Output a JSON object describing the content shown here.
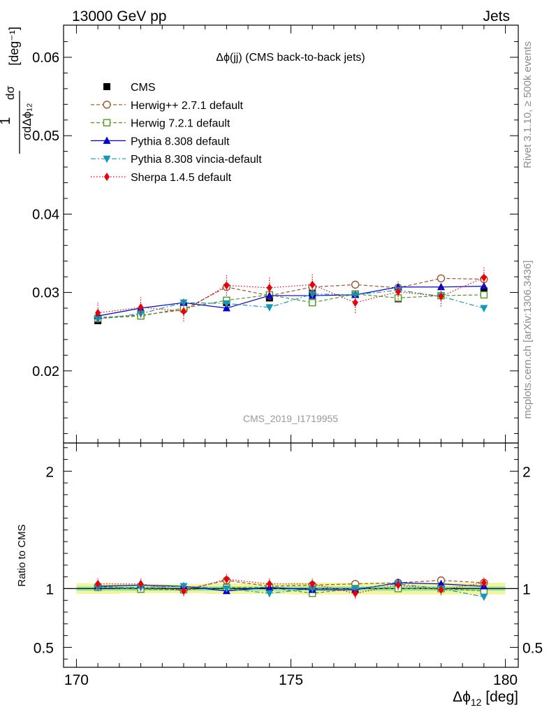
{
  "header": {
    "left": "13000 GeV pp",
    "right": "Jets"
  },
  "side_labels": {
    "rivet": "Rivet 3.1.10, ≥ 500k events",
    "mcplots": "mcplots.cern.ch [arXiv:1306.3436]"
  },
  "watermark": "CMS_2019_I1719955",
  "colors": {
    "CMS": "#000000",
    "Herwig++ 2.7.1 default": "#a0522d",
    "Herwig 7.2.1 default": "#4d9a1f",
    "Pythia 8.308 default": "#0000cc",
    "Pythia 8.308 vincia-default": "#1797b8",
    "Sherpa 1.4.5 default": "#e8000b",
    "band_inner": "#8ee6a8",
    "band_outer": "#f4f59a"
  },
  "chart_data": [
    {
      "type": "line",
      "title": "Δϕ(jj) (CMS back-to-back jets)",
      "ylabel": "1/σ dσ/dΔϕ_12 [deg⁻¹]",
      "xlim": [
        169.7,
        180.3
      ],
      "ylim": [
        0.0108,
        0.0641
      ],
      "yticks": [
        "0.02",
        "0.03",
        "0.04",
        "0.05",
        "0.06"
      ],
      "legend_position": "top-left",
      "x": [
        170.5,
        171.5,
        172.5,
        173.5,
        174.5,
        175.5,
        176.5,
        177.5,
        178.5,
        179.5
      ],
      "series": [
        {
          "name": "CMS",
          "marker": "square-filled",
          "line": "none",
          "values": [
            0.0264,
            0.0271,
            0.0283,
            0.0287,
            0.0293,
            0.0299,
            0.0298,
            0.0292,
            0.0296,
            0.0302
          ]
        },
        {
          "name": "Herwig++ 2.7.1 default",
          "marker": "circle-open",
          "line": "dashed",
          "values": [
            0.0268,
            0.0271,
            0.0278,
            0.0307,
            0.0296,
            0.0307,
            0.031,
            0.0306,
            0.0318,
            0.0317
          ]
        },
        {
          "name": "Herwig 7.2.1 default",
          "marker": "square-open",
          "line": "dashed",
          "values": [
            0.0267,
            0.027,
            0.028,
            0.029,
            0.0297,
            0.0287,
            0.0298,
            0.0293,
            0.0296,
            0.0297
          ]
        },
        {
          "name": "Pythia 8.308 default",
          "marker": "triangle-up",
          "line": "solid",
          "values": [
            0.027,
            0.028,
            0.0287,
            0.028,
            0.0296,
            0.0296,
            0.0297,
            0.0307,
            0.0307,
            0.0308
          ]
        },
        {
          "name": "Pythia 8.308 vincia-default",
          "marker": "triangle-down",
          "line": "dashdot",
          "values": [
            0.0266,
            0.0273,
            0.0287,
            0.0286,
            0.0281,
            0.0298,
            0.0297,
            0.0303,
            0.0295,
            0.028
          ]
        },
        {
          "name": "Sherpa 1.4.5 default",
          "marker": "diamond",
          "line": "dotted",
          "values": [
            0.0274,
            0.0281,
            0.0276,
            0.0309,
            0.0306,
            0.031,
            0.0287,
            0.0301,
            0.0295,
            0.0319
          ],
          "errors": [
            0.0013,
            0.0013,
            0.0013,
            0.0013,
            0.0013,
            0.0013,
            0.0013,
            0.0013,
            0.0013,
            0.0013
          ]
        }
      ]
    },
    {
      "type": "line",
      "ylabel": "Ratio to CMS",
      "xlabel": "Δϕ_12 [deg]",
      "xlim": [
        169.7,
        180.3
      ],
      "ylim": [
        0.33,
        2.24
      ],
      "yticks": [
        "0.5",
        "1",
        "2"
      ],
      "xticks": [
        "170",
        "175",
        "180"
      ],
      "x": [
        170.5,
        171.5,
        172.5,
        173.5,
        174.5,
        175.5,
        176.5,
        177.5,
        178.5,
        179.5
      ],
      "reference_line": 1,
      "bands": {
        "inner_half_width": [
          0.018,
          0.018,
          0.018,
          0.018,
          0.018,
          0.018,
          0.018,
          0.018,
          0.018,
          0.018
        ],
        "outer_half_width": [
          0.045,
          0.04,
          0.04,
          0.045,
          0.045,
          0.05,
          0.05,
          0.05,
          0.05,
          0.05
        ]
      },
      "series": [
        {
          "name": "Herwig++ 2.7.1 default",
          "values": [
            1.02,
            1.0,
            0.99,
            1.07,
            1.02,
            1.03,
            1.04,
            1.05,
            1.07,
            1.05
          ]
        },
        {
          "name": "Herwig 7.2.1 default",
          "values": [
            1.01,
            0.995,
            0.99,
            1.01,
            1.01,
            0.96,
            1.0,
            1.0,
            1.0,
            0.98
          ]
        },
        {
          "name": "Pythia 8.308 default",
          "values": [
            1.02,
            1.03,
            1.02,
            0.98,
            1.01,
            0.99,
            0.99,
            1.05,
            1.04,
            1.02
          ]
        },
        {
          "name": "Pythia 8.308 vincia-default",
          "values": [
            1.01,
            1.01,
            1.02,
            1.0,
            0.96,
            1.0,
            1.0,
            1.04,
            1.0,
            0.93
          ]
        },
        {
          "name": "Sherpa 1.4.5 default",
          "values": [
            1.04,
            1.04,
            0.98,
            1.08,
            1.04,
            1.04,
            0.96,
            1.03,
            0.99,
            1.05
          ],
          "errors": [
            0.045,
            0.045,
            0.045,
            0.045,
            0.045,
            0.045,
            0.045,
            0.045,
            0.045,
            0.045
          ]
        }
      ]
    }
  ]
}
